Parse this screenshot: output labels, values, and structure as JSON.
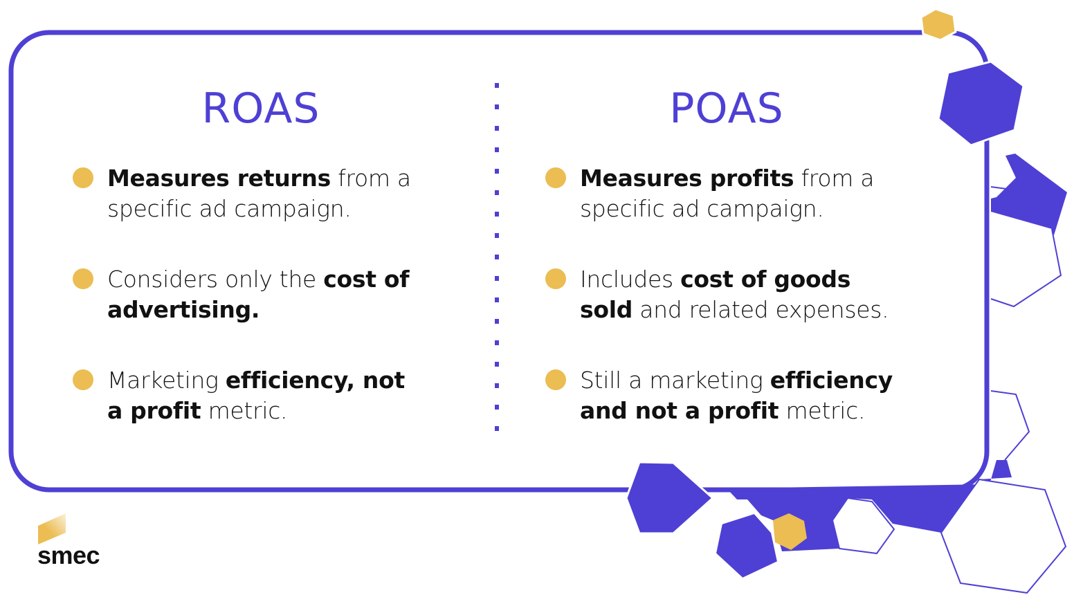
{
  "colors": {
    "accent": "#4e40d4",
    "bullet": "#ebbd52",
    "text": "#111111"
  },
  "roas": {
    "title": "ROAS",
    "items": [
      [
        {
          "t": "Measures returns",
          "b": true
        },
        {
          "t": " from a specific ad campaign.",
          "b": false
        }
      ],
      [
        {
          "t": "Considers only the ",
          "b": false
        },
        {
          "t": "cost of advertising.",
          "b": true
        }
      ],
      [
        {
          "t": "Marketing ",
          "b": false
        },
        {
          "t": "efficiency, not a profit",
          "b": true
        },
        {
          "t": " metric.",
          "b": false
        }
      ]
    ]
  },
  "poas": {
    "title": "POAS",
    "items": [
      [
        {
          "t": "Measures profits",
          "b": true
        },
        {
          "t": " from a specific ad campaign.",
          "b": false
        }
      ],
      [
        {
          "t": "Includes ",
          "b": false
        },
        {
          "t": "cost of goods sold",
          "b": true
        },
        {
          "t": " and related expenses.",
          "b": false
        }
      ],
      [
        {
          "t": "Still a marketing ",
          "b": false
        },
        {
          "t": "efficiency and not a profit",
          "b": true
        },
        {
          "t": " metric.",
          "b": false
        }
      ]
    ]
  },
  "logo": {
    "text": "smec"
  }
}
